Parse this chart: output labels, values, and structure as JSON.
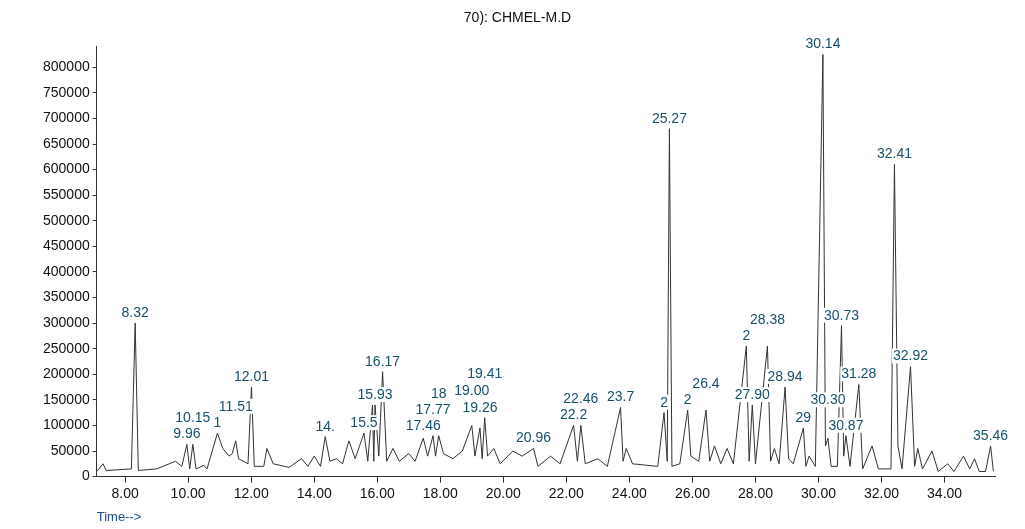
{
  "chart_data": {
    "type": "line",
    "title": "70): CHMEL-M.D",
    "xlabel": "Time-->",
    "x": [
      7.1,
      7.3,
      7.4,
      8.2,
      8.32,
      8.42,
      9.0,
      9.6,
      9.8,
      9.96,
      10.05,
      10.15,
      10.25,
      10.5,
      10.6,
      10.93,
      11.1,
      11.3,
      11.4,
      11.51,
      11.6,
      11.9,
      12.01,
      12.1,
      12.4,
      12.5,
      12.7,
      13.2,
      13.6,
      13.8,
      14.0,
      14.2,
      14.35,
      14.5,
      14.7,
      14.9,
      15.1,
      15.3,
      15.58,
      15.7,
      15.85,
      15.89,
      15.93,
      16.05,
      16.17,
      16.3,
      16.5,
      16.7,
      17.0,
      17.2,
      17.46,
      17.6,
      17.77,
      17.85,
      17.95,
      18.1,
      18.4,
      18.7,
      19.0,
      19.1,
      19.26,
      19.33,
      19.41,
      19.5,
      19.7,
      19.9,
      20.3,
      20.6,
      20.96,
      21.1,
      21.5,
      21.8,
      22.23,
      22.35,
      22.46,
      22.6,
      23.0,
      23.3,
      23.72,
      23.8,
      23.9,
      24.1,
      24.9,
      25.1,
      25.2,
      25.27,
      25.35,
      25.6,
      25.85,
      25.95,
      26.2,
      26.43,
      26.55,
      26.7,
      26.9,
      27.1,
      27.3,
      27.71,
      27.8,
      27.9,
      28.0,
      28.38,
      28.48,
      28.6,
      28.75,
      28.94,
      29.05,
      29.2,
      29.52,
      29.6,
      29.7,
      29.9,
      30.14,
      30.22,
      30.3,
      30.4,
      30.6,
      30.73,
      30.8,
      30.87,
      31.0,
      31.28,
      31.4,
      31.7,
      31.9,
      32.3,
      32.41,
      32.52,
      32.65,
      32.92,
      33.05,
      33.15,
      33.3,
      33.6,
      33.8,
      34.1,
      34.3,
      34.6,
      34.8,
      34.95,
      35.1,
      35.3,
      35.46,
      35.55
    ],
    "series": [
      {
        "color": "#333333",
        "values": [
          10000,
          25000,
          12000,
          15000,
          300000,
          12000,
          15000,
          30000,
          20000,
          63000,
          15000,
          63000,
          15000,
          22000,
          15000,
          85000,
          55000,
          40000,
          45000,
          70000,
          35000,
          25000,
          175000,
          20000,
          20000,
          55000,
          25000,
          18000,
          35000,
          20000,
          40000,
          20000,
          78000,
          30000,
          35000,
          25000,
          70000,
          35000,
          85000,
          30000,
          140000,
          30000,
          140000,
          40000,
          205000,
          30000,
          55000,
          30000,
          45000,
          30000,
          75000,
          40000,
          80000,
          40000,
          80000,
          45000,
          35000,
          50000,
          100000,
          40000,
          95000,
          35000,
          115000,
          40000,
          55000,
          25000,
          50000,
          40000,
          55000,
          20000,
          40000,
          25000,
          100000,
          30000,
          100000,
          25000,
          35000,
          20000,
          135000,
          30000,
          55000,
          25000,
          20000,
          125000,
          30000,
          680000,
          20000,
          25000,
          130000,
          40000,
          30000,
          130000,
          30000,
          60000,
          25000,
          55000,
          25000,
          255000,
          30000,
          140000,
          25000,
          255000,
          30000,
          55000,
          25000,
          175000,
          35000,
          25000,
          95000,
          20000,
          40000,
          20000,
          825000,
          60000,
          75000,
          20000,
          20000,
          295000,
          40000,
          80000,
          20000,
          180000,
          15000,
          60000,
          15000,
          15000,
          610000,
          60000,
          15000,
          215000,
          20000,
          55000,
          15000,
          50000,
          10000,
          25000,
          10000,
          40000,
          15000,
          35000,
          10000,
          10000,
          60000,
          10000
        ]
      }
    ],
    "xlim": [
      7.1,
      35.6
    ],
    "ylim": [
      0,
      840000
    ],
    "xticks": [
      {
        "value": 8,
        "label": "8.00"
      },
      {
        "value": 10,
        "label": "10.00"
      },
      {
        "value": 12,
        "label": "12.00"
      },
      {
        "value": 14,
        "label": "14.00"
      },
      {
        "value": 16,
        "label": "16.00"
      },
      {
        "value": 18,
        "label": "18.00"
      },
      {
        "value": 20,
        "label": "20.00"
      },
      {
        "value": 22,
        "label": "22.00"
      },
      {
        "value": 24,
        "label": "24.00"
      },
      {
        "value": 26,
        "label": "26.00"
      },
      {
        "value": 28,
        "label": "28.00"
      },
      {
        "value": 30,
        "label": "30.00"
      },
      {
        "value": 32,
        "label": "32.00"
      },
      {
        "value": 34,
        "label": "34.00"
      }
    ],
    "yticks": [
      0,
      50000,
      100000,
      150000,
      200000,
      250000,
      300000,
      350000,
      400000,
      450000,
      500000,
      550000,
      600000,
      650000,
      700000,
      750000,
      800000
    ],
    "grid": false,
    "legend": false,
    "marker": "none",
    "line_style": "solid",
    "annotations": [
      {
        "text": "8.32",
        "x": 8.32,
        "y": 300000
      },
      {
        "text": "9.96",
        "x": 9.96,
        "y": 63000
      },
      {
        "text": "10.15",
        "x": 10.15,
        "y": 63000
      },
      {
        "text": "1",
        "x": 10.93,
        "y": 85000
      },
      {
        "text": "11.51",
        "x": 11.51,
        "y": 70000
      },
      {
        "text": "12.01",
        "x": 12.01,
        "y": 175000
      },
      {
        "text": "14.",
        "x": 14.35,
        "y": 78000
      },
      {
        "text": "15.5",
        "x": 15.58,
        "y": 85000
      },
      {
        "text": "15.93",
        "x": 15.93,
        "y": 140000
      },
      {
        "text": "16.17",
        "x": 16.17,
        "y": 205000
      },
      {
        "text": "17.46",
        "x": 17.46,
        "y": 75000
      },
      {
        "text": "17.77",
        "x": 17.77,
        "y": 80000
      },
      {
        "text": "18",
        "x": 17.95,
        "y": 80000
      },
      {
        "text": "19.26",
        "x": 19.26,
        "y": 95000
      },
      {
        "text": "19.00",
        "x": 19.0,
        "y": 100000
      },
      {
        "text": "19.41",
        "x": 19.41,
        "y": 115000
      },
      {
        "text": "20.96",
        "x": 20.96,
        "y": 55000
      },
      {
        "text": "22.2",
        "x": 22.23,
        "y": 100000
      },
      {
        "text": "22.46",
        "x": 22.46,
        "y": 100000
      },
      {
        "text": "23.7",
        "x": 23.72,
        "y": 135000
      },
      {
        "text": "2",
        "x": 25.1,
        "y": 125000
      },
      {
        "text": "25.27",
        "x": 25.27,
        "y": 680000
      },
      {
        "text": "2",
        "x": 25.85,
        "y": 130000
      },
      {
        "text": "26.4",
        "x": 26.43,
        "y": 130000
      },
      {
        "text": "2",
        "x": 27.71,
        "y": 255000
      },
      {
        "text": "27.90",
        "x": 27.9,
        "y": 140000
      },
      {
        "text": "28.38",
        "x": 28.38,
        "y": 255000
      },
      {
        "text": "28.94",
        "x": 28.94,
        "y": 175000
      },
      {
        "text": "29",
        "x": 29.52,
        "y": 95000
      },
      {
        "text": "30.14",
        "x": 30.14,
        "y": 825000
      },
      {
        "text": "30.30",
        "x": 30.3,
        "y": 75000
      },
      {
        "text": "30.73",
        "x": 30.73,
        "y": 295000
      },
      {
        "text": "30.87",
        "x": 30.87,
        "y": 80000
      },
      {
        "text": "31.28",
        "x": 31.28,
        "y": 180000
      },
      {
        "text": "32.41",
        "x": 32.41,
        "y": 610000
      },
      {
        "text": "32.92",
        "x": 32.92,
        "y": 215000
      },
      {
        "text": "35.46",
        "x": 35.46,
        "y": 60000
      }
    ]
  }
}
